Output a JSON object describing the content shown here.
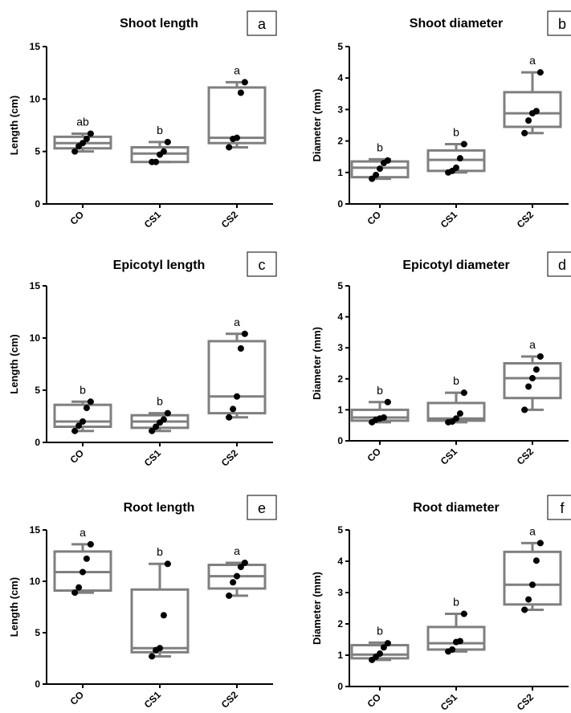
{
  "chart_data": [
    {
      "type": "boxplot",
      "panel": "a",
      "title": "Shoot length",
      "ylabel": "Length (cm)",
      "ylim": [
        0,
        15
      ],
      "yticks": [
        0,
        5,
        10,
        15
      ],
      "categories": [
        "CO",
        "CS1",
        "CS2"
      ],
      "boxes": [
        {
          "category": "CO",
          "min": 5.0,
          "q1": 5.3,
          "median": 5.8,
          "q3": 6.4,
          "max": 6.7,
          "points": [
            5.0,
            5.5,
            5.8,
            6.2,
            6.7
          ],
          "letter": "ab"
        },
        {
          "category": "CS1",
          "min": 4.0,
          "q1": 4.0,
          "median": 4.8,
          "q3": 5.4,
          "max": 5.9,
          "points": [
            4.0,
            4.0,
            4.7,
            5.0,
            5.9
          ],
          "letter": "b"
        },
        {
          "category": "CS2",
          "min": 5.4,
          "q1": 5.8,
          "median": 6.3,
          "q3": 11.1,
          "max": 11.6,
          "points": [
            5.4,
            6.2,
            6.3,
            10.6,
            11.6
          ],
          "letter": "a"
        }
      ]
    },
    {
      "type": "boxplot",
      "panel": "b",
      "title": "Shoot diameter",
      "ylabel": "Diameter (mm)",
      "ylim": [
        0,
        5
      ],
      "yticks": [
        0,
        1,
        2,
        3,
        4,
        5
      ],
      "categories": [
        "CO",
        "CS1",
        "CS2"
      ],
      "boxes": [
        {
          "category": "CO",
          "min": 0.8,
          "q1": 0.85,
          "median": 1.15,
          "q3": 1.35,
          "max": 1.42,
          "points": [
            0.8,
            0.92,
            1.12,
            1.3,
            1.38
          ],
          "letter": "b"
        },
        {
          "category": "CS1",
          "min": 1.0,
          "q1": 1.05,
          "median": 1.4,
          "q3": 1.7,
          "max": 1.9,
          "points": [
            1.0,
            1.05,
            1.15,
            1.45,
            1.9
          ],
          "letter": "b"
        },
        {
          "category": "CS2",
          "min": 2.25,
          "q1": 2.45,
          "median": 2.88,
          "q3": 3.55,
          "max": 4.18,
          "points": [
            2.25,
            2.65,
            2.88,
            2.95,
            4.18
          ],
          "letter": "a"
        }
      ]
    },
    {
      "type": "boxplot",
      "panel": "c",
      "title": "Epicotyl length",
      "ylabel": "Length (cm)",
      "ylim": [
        0,
        15
      ],
      "yticks": [
        0,
        5,
        10,
        15
      ],
      "categories": [
        "CO",
        "CS1",
        "CS2"
      ],
      "boxes": [
        {
          "category": "CO",
          "min": 1.1,
          "q1": 1.5,
          "median": 2.0,
          "q3": 3.6,
          "max": 3.9,
          "points": [
            1.1,
            1.6,
            2.0,
            3.3,
            3.9
          ],
          "letter": "b"
        },
        {
          "category": "CS1",
          "min": 1.1,
          "q1": 1.4,
          "median": 2.0,
          "q3": 2.6,
          "max": 2.8,
          "points": [
            1.1,
            1.5,
            1.9,
            2.2,
            2.8
          ],
          "letter": "b"
        },
        {
          "category": "CS2",
          "min": 2.4,
          "q1": 2.8,
          "median": 4.4,
          "q3": 9.7,
          "max": 10.4,
          "points": [
            2.4,
            3.2,
            4.4,
            9.0,
            10.4
          ],
          "letter": "a"
        }
      ]
    },
    {
      "type": "boxplot",
      "panel": "d",
      "title": "Epicotyl diameter",
      "ylabel": "Diameter (mm)",
      "ylim": [
        0,
        5
      ],
      "yticks": [
        0,
        1,
        2,
        3,
        4,
        5
      ],
      "categories": [
        "CO",
        "CS1",
        "CS2"
      ],
      "boxes": [
        {
          "category": "CO",
          "min": 0.6,
          "q1": 0.65,
          "median": 0.75,
          "q3": 1.0,
          "max": 1.25,
          "points": [
            0.6,
            0.68,
            0.72,
            0.75,
            1.25
          ],
          "letter": "b"
        },
        {
          "category": "CS1",
          "min": 0.6,
          "q1": 0.65,
          "median": 0.72,
          "q3": 1.22,
          "max": 1.55,
          "points": [
            0.6,
            0.62,
            0.72,
            0.88,
            1.55
          ],
          "letter": "b"
        },
        {
          "category": "CS2",
          "min": 1.0,
          "q1": 1.38,
          "median": 2.02,
          "q3": 2.5,
          "max": 2.72,
          "points": [
            1.0,
            1.75,
            2.02,
            2.3,
            2.72
          ],
          "letter": "a"
        }
      ]
    },
    {
      "type": "boxplot",
      "panel": "e",
      "title": "Root length",
      "ylabel": "Length (cm)",
      "ylim": [
        0,
        15
      ],
      "yticks": [
        0,
        5,
        10,
        15
      ],
      "categories": [
        "CO",
        "CS1",
        "CS2"
      ],
      "boxes": [
        {
          "category": "CO",
          "min": 8.9,
          "q1": 9.1,
          "median": 10.9,
          "q3": 12.9,
          "max": 13.6,
          "points": [
            8.9,
            9.4,
            10.9,
            12.2,
            13.6
          ],
          "letter": "a"
        },
        {
          "category": "CS1",
          "min": 2.7,
          "q1": 3.1,
          "median": 3.5,
          "q3": 9.2,
          "max": 11.7,
          "points": [
            2.7,
            3.3,
            3.5,
            6.7,
            11.7
          ],
          "letter": "b"
        },
        {
          "category": "CS2",
          "min": 8.6,
          "q1": 9.3,
          "median": 10.5,
          "q3": 11.6,
          "max": 11.8,
          "points": [
            8.6,
            9.9,
            10.5,
            11.4,
            11.8
          ],
          "letter": "a"
        }
      ]
    },
    {
      "type": "boxplot",
      "panel": "f",
      "title": "Root diameter",
      "ylabel": "Diameter (mm)",
      "ylim": [
        0,
        5
      ],
      "yticks": [
        0,
        1,
        2,
        3,
        4,
        5
      ],
      "categories": [
        "CO",
        "CS1",
        "CS2"
      ],
      "boxes": [
        {
          "category": "CO",
          "min": 0.85,
          "q1": 0.9,
          "median": 1.02,
          "q3": 1.32,
          "max": 1.4,
          "points": [
            0.85,
            0.95,
            1.05,
            1.25,
            1.38
          ],
          "letter": "b"
        },
        {
          "category": "CS1",
          "min": 1.12,
          "q1": 1.18,
          "median": 1.38,
          "q3": 1.9,
          "max": 2.32,
          "points": [
            1.12,
            1.18,
            1.42,
            1.45,
            2.32
          ],
          "letter": "b"
        },
        {
          "category": "CS2",
          "min": 2.45,
          "q1": 2.62,
          "median": 3.25,
          "q3": 4.3,
          "max": 4.58,
          "points": [
            2.45,
            2.78,
            3.25,
            4.02,
            4.58
          ],
          "letter": "a"
        }
      ]
    }
  ],
  "colors": {
    "box": "#7f7f7f",
    "axis": "#000000",
    "point": "#000000",
    "background": "#ffffff"
  }
}
